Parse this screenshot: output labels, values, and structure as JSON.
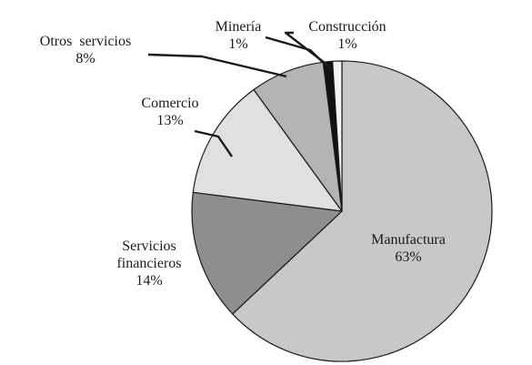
{
  "chart_data": {
    "type": "pie",
    "title": "",
    "series": [
      {
        "slices": [
          {
            "label": [
              "Manufactura"
            ],
            "value": 63,
            "display": "63%",
            "color": "#c8c8c8"
          },
          {
            "label": [
              "Servicios",
              "financieros"
            ],
            "value": 14,
            "display": "14%",
            "color": "#8e8e8e"
          },
          {
            "label": [
              "Comercio"
            ],
            "value": 13,
            "display": "13%",
            "color": "#e0e0e0"
          },
          {
            "label": [
              "Otros  servicios"
            ],
            "value": 8,
            "display": "8%",
            "color": "#b4b4b4"
          },
          {
            "label": [
              "Minería"
            ],
            "value": 1,
            "display": "1%",
            "color": "#111111"
          },
          {
            "label": [
              "Construcción"
            ],
            "value": 1,
            "display": "1%",
            "color": "#f5f5f5"
          }
        ]
      }
    ],
    "start_angle_deg": 0,
    "direction": "clockwise",
    "legend": "none",
    "colors": {
      "edge": "#1a1a1a",
      "leader": "#1a1a1a",
      "text": "#1a1a1a"
    }
  }
}
